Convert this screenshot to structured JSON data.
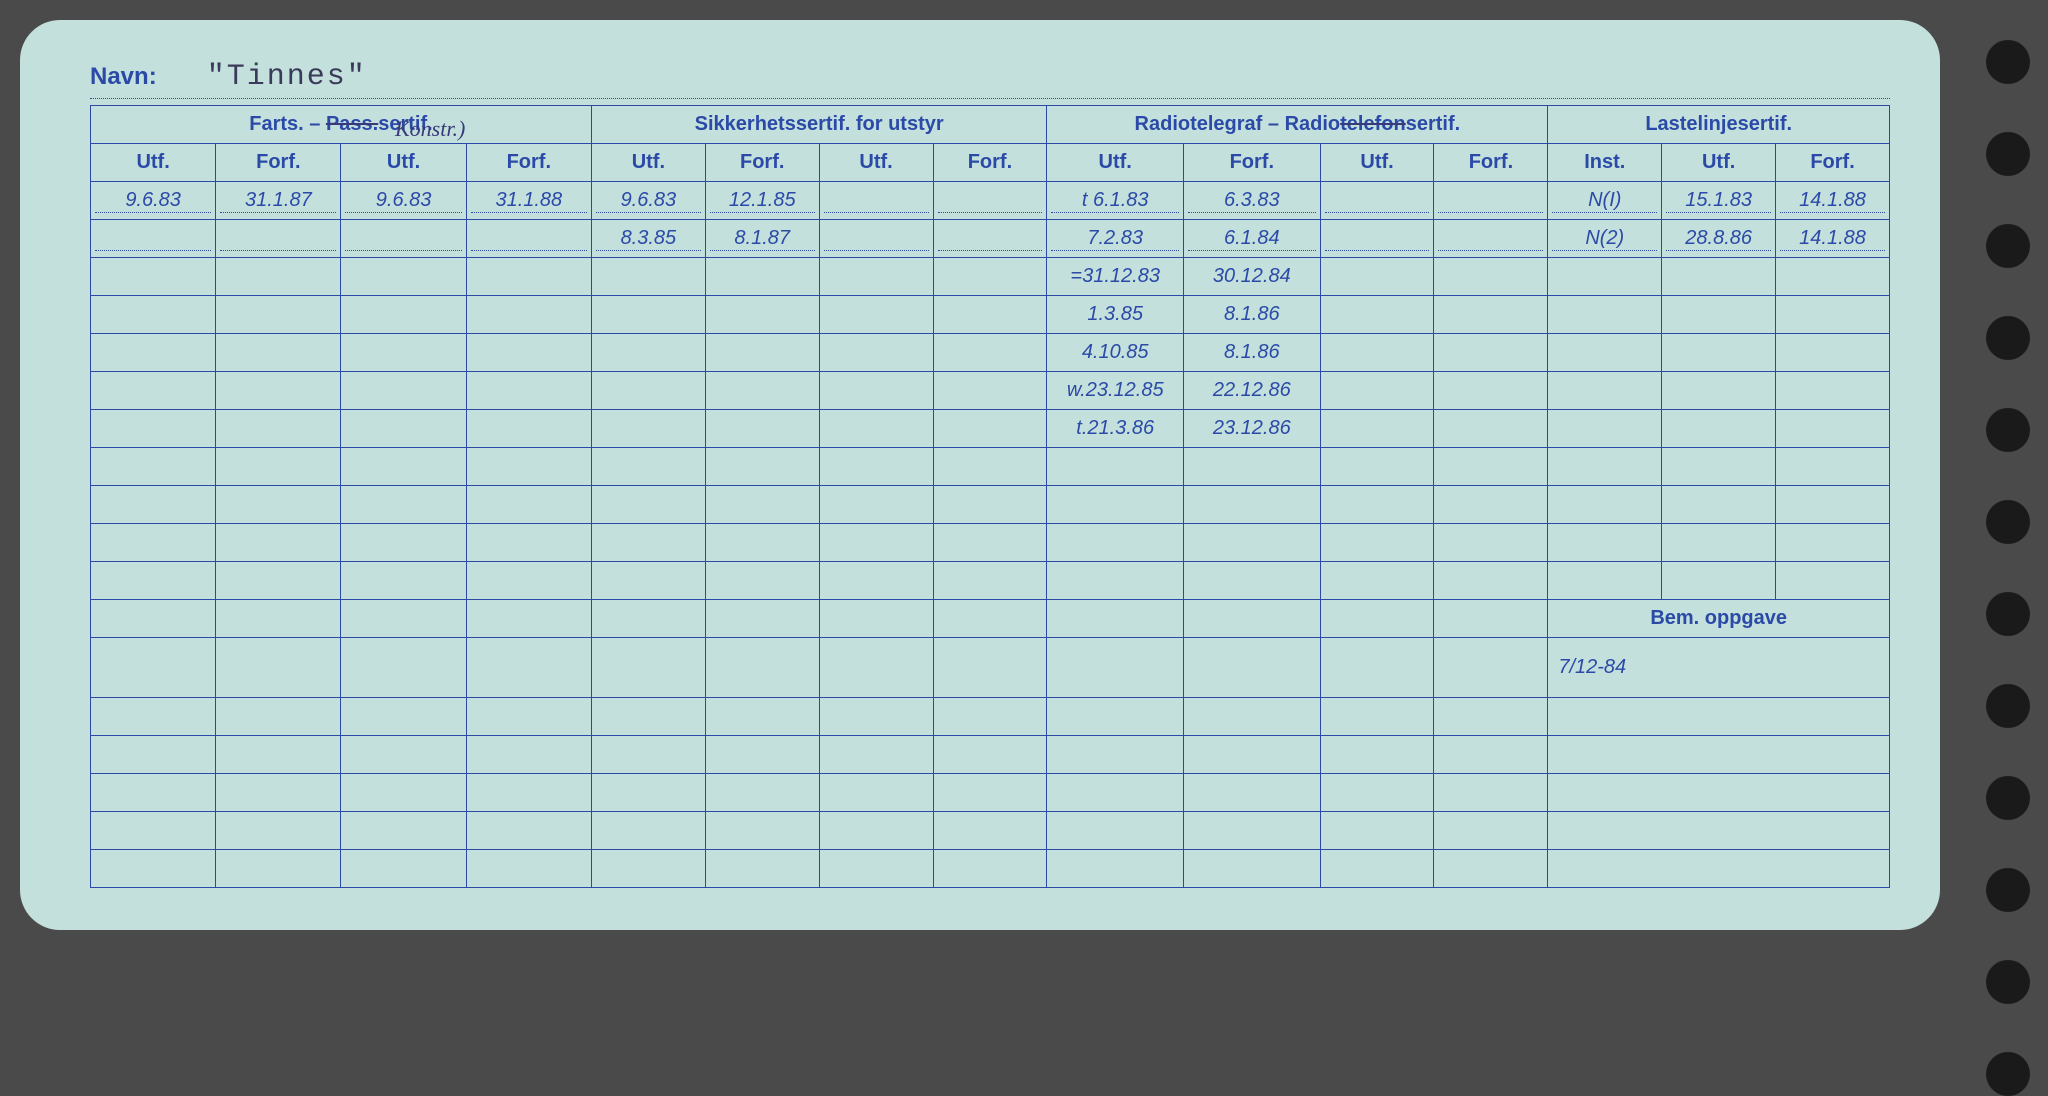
{
  "colors": {
    "card_bg": "#c4e0dc",
    "ink_blue": "#2b4aa8",
    "handwriting": "#2a3a7a",
    "page_bg": "#4a4a4a",
    "hole": "#1a1a1a"
  },
  "navn": {
    "label": "Navn:",
    "value": "\"Tinnes\""
  },
  "annotation_over_pass": "Konstr.)",
  "sections": [
    {
      "title": "Farts. – Pass.sertif.",
      "strike_part": "Pass.",
      "cols": [
        "Utf.",
        "Forf.",
        "Utf.",
        "Forf."
      ]
    },
    {
      "title": "Sikkerhetssertif. for utstyr",
      "cols": [
        "Utf.",
        "Forf.",
        "Utf.",
        "Forf."
      ]
    },
    {
      "title": "Radiotelegraf – Radiotelefonsertif.",
      "strike_part": "telefon",
      "cols": [
        "Utf.",
        "Forf.",
        "Utf.",
        "Forf."
      ]
    },
    {
      "title": "Lastelinjesertif.",
      "cols": [
        "Inst.",
        "Utf.",
        "Forf."
      ]
    }
  ],
  "rows": [
    {
      "farts": [
        "9.6.83",
        "31.1.87",
        "9.6.83",
        "31.1.88"
      ],
      "sikkerhet": [
        "9.6.83",
        "12.1.85",
        "",
        ""
      ],
      "radio": [
        "t 6.1.83",
        "6.3.83",
        "",
        ""
      ],
      "laste": [
        "N(I)",
        "15.1.83",
        "14.1.88"
      ]
    },
    {
      "farts": [
        "",
        "",
        "",
        ""
      ],
      "sikkerhet": [
        "8.3.85",
        "8.1.87",
        "",
        ""
      ],
      "radio": [
        "7.2.83",
        "6.1.84",
        "",
        ""
      ],
      "laste": [
        "N(2)",
        "28.8.86",
        "14.1.88"
      ]
    },
    {
      "farts": [
        "",
        "",
        "",
        ""
      ],
      "sikkerhet": [
        "",
        "",
        "",
        ""
      ],
      "radio": [
        "=31.12.83",
        "30.12.84",
        "",
        ""
      ],
      "laste": [
        "",
        "",
        ""
      ]
    },
    {
      "farts": [
        "",
        "",
        "",
        ""
      ],
      "sikkerhet": [
        "",
        "",
        "",
        ""
      ],
      "radio": [
        "1.3.85",
        "8.1.86",
        "",
        ""
      ],
      "laste": [
        "",
        "",
        ""
      ]
    },
    {
      "farts": [
        "",
        "",
        "",
        ""
      ],
      "sikkerhet": [
        "",
        "",
        "",
        ""
      ],
      "radio": [
        "4.10.85",
        "8.1.86",
        "",
        ""
      ],
      "laste": [
        "",
        "",
        ""
      ]
    },
    {
      "farts": [
        "",
        "",
        "",
        ""
      ],
      "sikkerhet": [
        "",
        "",
        "",
        ""
      ],
      "radio": [
        "w.23.12.85",
        "22.12.86",
        "",
        ""
      ],
      "laste": [
        "",
        "",
        ""
      ]
    },
    {
      "farts": [
        "",
        "",
        "",
        ""
      ],
      "sikkerhet": [
        "",
        "",
        "",
        ""
      ],
      "radio": [
        "t.21.3.86",
        "23.12.86",
        "",
        ""
      ],
      "laste": [
        "",
        "",
        ""
      ]
    }
  ],
  "empty_rows_upper": 4,
  "bem_oppgave": {
    "label": "Bem. oppgave",
    "value": "7/12-84"
  },
  "empty_rows_lower": 5,
  "punch_hole_count": 12
}
